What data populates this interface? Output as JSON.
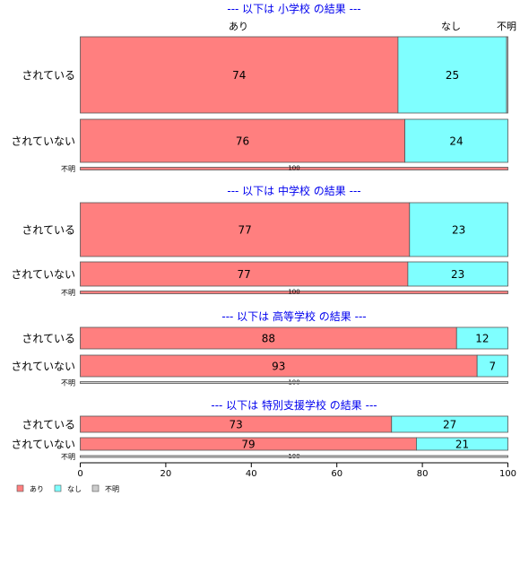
{
  "chart_data": {
    "type": "bar",
    "orientation": "horizontal",
    "stacked": true,
    "xlim": [
      0,
      100
    ],
    "x_ticks": [
      "0",
      "20",
      "40",
      "60",
      "80",
      "100"
    ],
    "top_labels": [
      "あり",
      "なし",
      "不明"
    ],
    "legend_position": "bottom-left",
    "legend": [
      {
        "name": "あり",
        "color": "#ff7f7f"
      },
      {
        "name": "なし",
        "color": "#7fffff"
      },
      {
        "name": "不明",
        "color": "#cccccc"
      }
    ],
    "panels": [
      {
        "title": "--- 以下は 小学校 の結果 ---",
        "rows": [
          {
            "label": "されている",
            "values": [
              74.3,
              25.4,
              0.3
            ],
            "value_labels": [
              "74",
              "25",
              ""
            ]
          },
          {
            "label": "されていない",
            "values": [
              75.9,
              24.1,
              0.0
            ],
            "value_labels": [
              "76",
              "24",
              ""
            ]
          },
          {
            "label": "不明",
            "values": [
              100,
              0,
              0
            ],
            "value_labels": [
              "100",
              "",
              ""
            ]
          }
        ]
      },
      {
        "title": "--- 以下は 中学校 の結果 ---",
        "rows": [
          {
            "label": "されている",
            "values": [
              77.0,
              23.0,
              0.0
            ],
            "value_labels": [
              "77",
              "23",
              ""
            ]
          },
          {
            "label": "されていない",
            "values": [
              76.6,
              23.4,
              0.0
            ],
            "value_labels": [
              "77",
              "23",
              ""
            ]
          },
          {
            "label": "不明",
            "values": [
              100,
              0,
              0
            ],
            "value_labels": [
              "100",
              "",
              ""
            ]
          }
        ]
      },
      {
        "title": "--- 以下は 高等学校 の結果 ---",
        "rows": [
          {
            "label": "されている",
            "values": [
              88.0,
              12.0,
              0.0
            ],
            "value_labels": [
              "88",
              "12",
              ""
            ]
          },
          {
            "label": "されていない",
            "values": [
              92.8,
              7.2,
              0.0
            ],
            "value_labels": [
              "93",
              "7",
              ""
            ]
          },
          {
            "label": "不明",
            "values": [
              0,
              0,
              100
            ],
            "value_labels": [
              "100",
              "",
              ""
            ]
          }
        ]
      },
      {
        "title": "--- 以下は 特別支援学校 の結果 ---",
        "rows": [
          {
            "label": "されている",
            "values": [
              72.8,
              27.2,
              0.0
            ],
            "value_labels": [
              "73",
              "27",
              ""
            ]
          },
          {
            "label": "されていない",
            "values": [
              78.6,
              21.4,
              0.0
            ],
            "value_labels": [
              "79",
              "21",
              ""
            ]
          },
          {
            "label": "不明",
            "values": [
              0,
              0,
              100
            ],
            "value_labels": [
              "100",
              "",
              ""
            ]
          }
        ]
      }
    ]
  }
}
